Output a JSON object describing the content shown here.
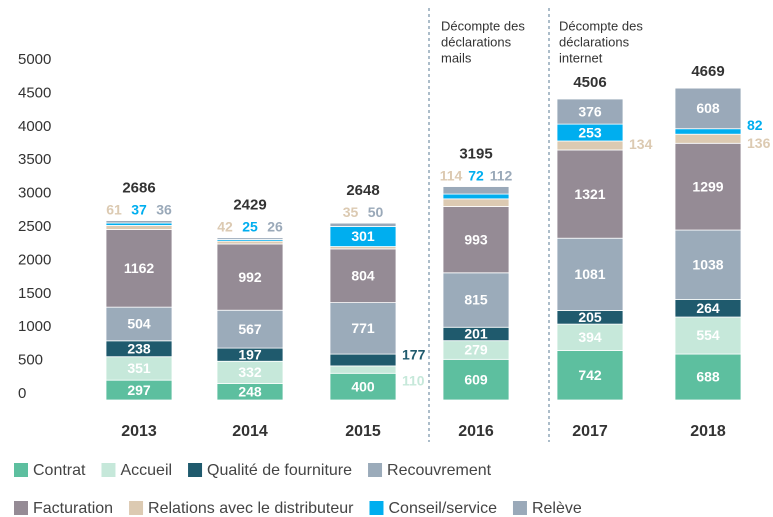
{
  "chart_data": {
    "type": "stacked_bar",
    "categories": [
      "2013",
      "2014",
      "2015",
      "2016",
      "2017",
      "2018"
    ],
    "series": [
      {
        "name": "Contrat",
        "color": "#5dbf9f",
        "values": [
          297,
          248,
          400,
          609,
          742,
          688
        ]
      },
      {
        "name": "Accueil",
        "color": "#c6e8da",
        "values": [
          351,
          332,
          110,
          279,
          394,
          554
        ]
      },
      {
        "name": "Qualité de fourniture",
        "color": "#1f5a6d",
        "values": [
          238,
          197,
          177,
          201,
          205,
          264
        ]
      },
      {
        "name": "Recouvrement",
        "color": "#9babba",
        "values": [
          504,
          567,
          771,
          815,
          1081,
          1038
        ]
      },
      {
        "name": "Facturation",
        "color": "#958b95",
        "values": [
          1162,
          992,
          804,
          993,
          1321,
          1299
        ]
      },
      {
        "name": "Relations avec le distributeur",
        "color": "#dccab2",
        "values": [
          61,
          42,
          35,
          114,
          134,
          136
        ]
      },
      {
        "name": "Conseil/service",
        "color": "#00aeef",
        "values": [
          37,
          25,
          301,
          72,
          253,
          82
        ]
      },
      {
        "name": "Relève",
        "color": "#9aa9b9",
        "values": [
          36,
          26,
          50,
          112,
          376,
          608
        ]
      }
    ],
    "totals": [
      2686,
      2429,
      2648,
      3195,
      4506,
      4669
    ],
    "totals_labels": [
      "2686",
      "2429",
      "2648",
      "3195",
      "4506",
      "4669"
    ],
    "ylim": [
      0,
      5000
    ],
    "yticks": [
      0,
      500,
      {
        "value": 1000,
        "label": "1000"
      },
      {
        "value": 1500,
        "label": "1500"
      },
      {
        "value": 2000,
        "label": "2000"
      },
      {
        "value": 2500,
        "label": "2500"
      },
      {
        "value": 3000,
        "label": "3000"
      },
      {
        "value": 3500,
        "label": "3500"
      },
      {
        "value": 4000,
        "label": "4000"
      },
      {
        "value": 4500,
        "label": "4500"
      },
      {
        "value": 5000,
        "label": "5000"
      }
    ],
    "grid": false,
    "annotations": [
      {
        "lines": [
          "Décompte des",
          "déclarations",
          "mails"
        ]
      },
      {
        "lines": [
          "Décompte des",
          "déclarations",
          "internet"
        ]
      }
    ]
  }
}
